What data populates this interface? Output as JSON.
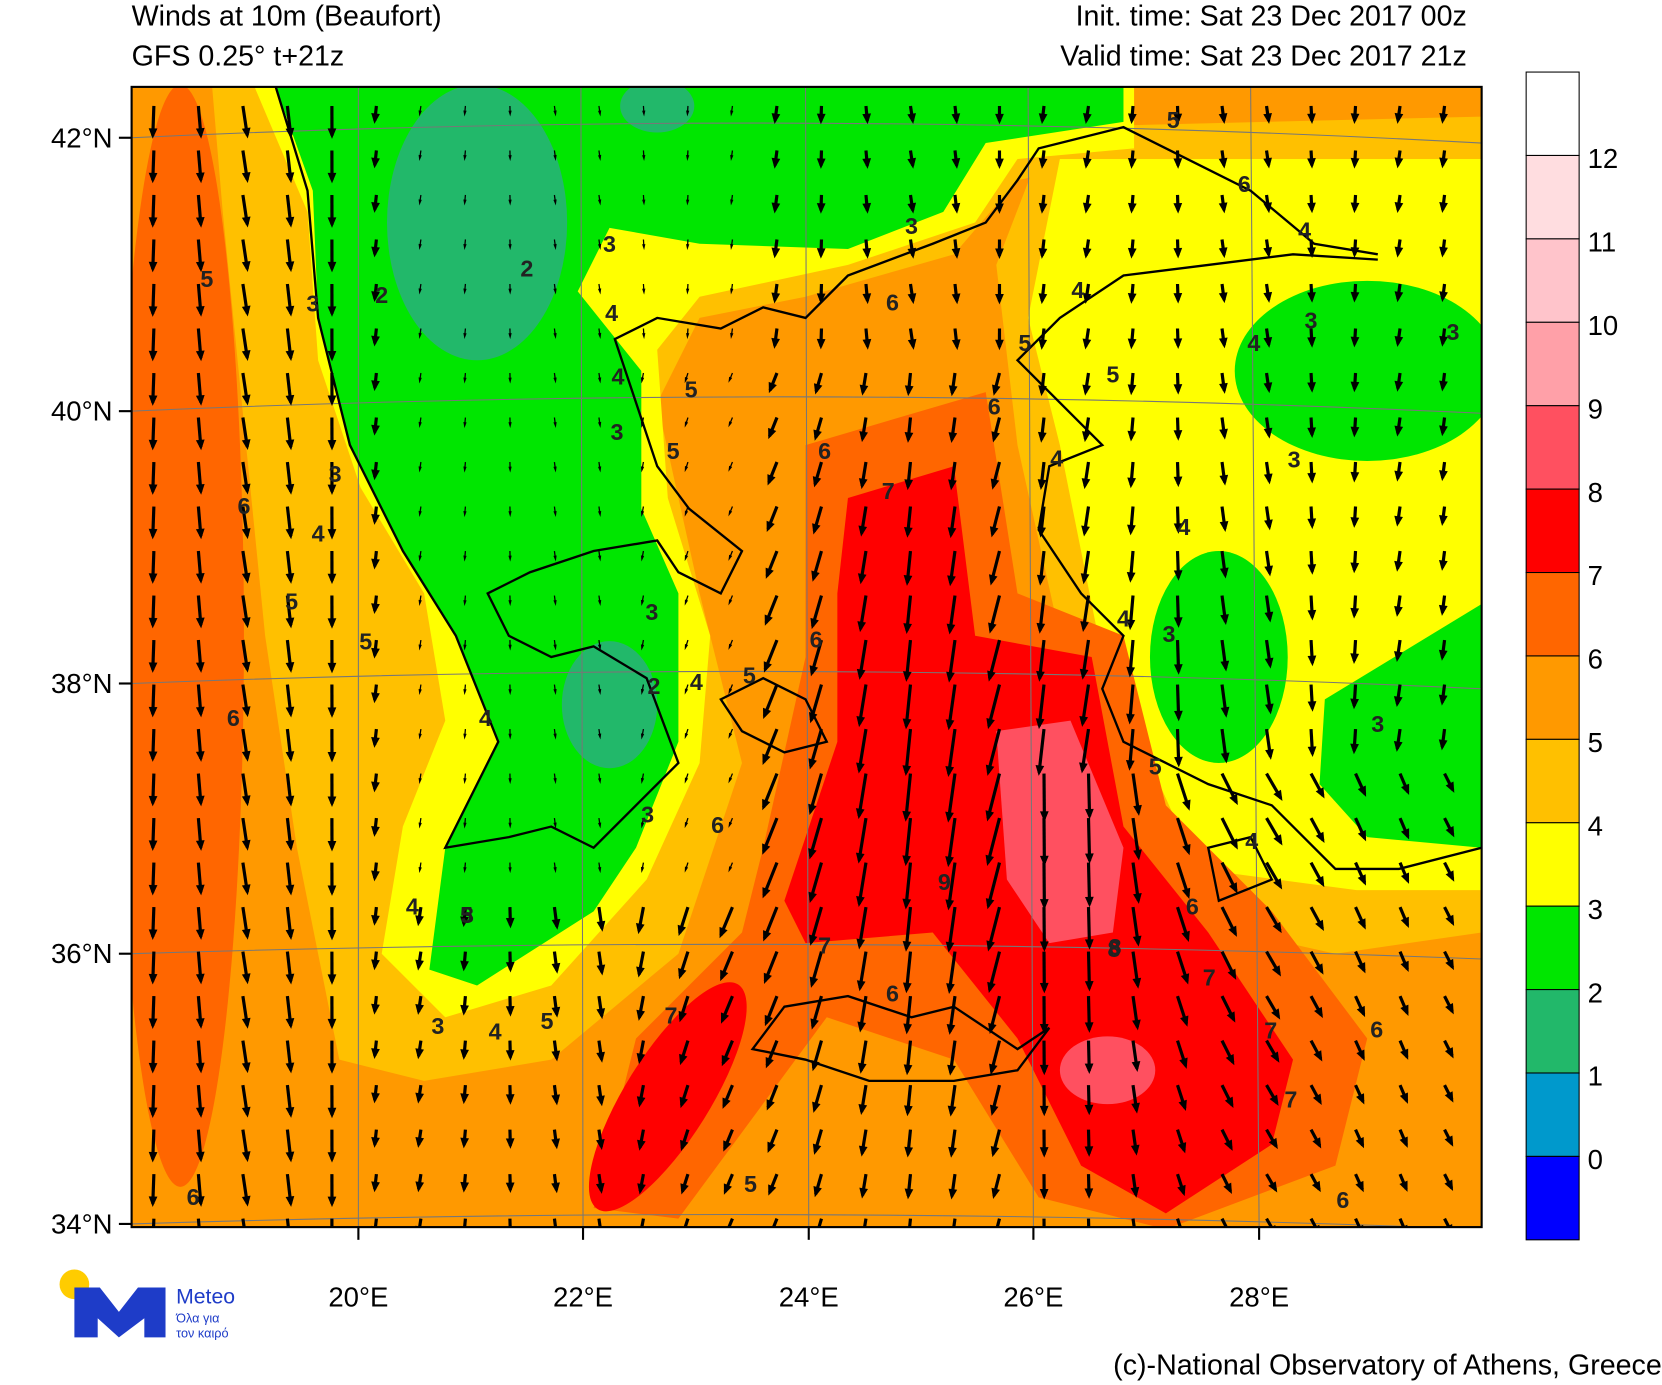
{
  "header": {
    "title": "Winds at 10m (Beaufort)",
    "model": "GFS 0.25° t+21z",
    "init_time": "Init. time: Sat 23 Dec 2017 00z",
    "valid_time": "Valid time: Sat 23 Dec 2017 21z"
  },
  "map": {
    "lat_labels": [
      "42°N",
      "40°N",
      "38°N",
      "36°N",
      "34°N"
    ],
    "lon_labels": [
      "20°E",
      "22°E",
      "24°E",
      "26°E",
      "28°E"
    ],
    "contour_labels": [
      5,
      3,
      2,
      2,
      3,
      4,
      4,
      5,
      3,
      5,
      6,
      6,
      7,
      5,
      4,
      3,
      5,
      6,
      4,
      3,
      3,
      5,
      2,
      4,
      5,
      6,
      3,
      6,
      5,
      4,
      3,
      6,
      5,
      6,
      4,
      5,
      3,
      4,
      7,
      6,
      9,
      8,
      7,
      7,
      6,
      7,
      6,
      5,
      3,
      4,
      4,
      3,
      4,
      6,
      3,
      4,
      7,
      6,
      5,
      6,
      4,
      3,
      3,
      8,
      4,
      5
    ]
  },
  "colorbar": {
    "levels": [
      0,
      1,
      2,
      3,
      4,
      5,
      6,
      7,
      8,
      9,
      10,
      11,
      12
    ],
    "colors": [
      "#0000ff",
      "#0099cc",
      "#22b86a",
      "#00e600",
      "#ffff00",
      "#ffc000",
      "#ff9900",
      "#ff6600",
      "#ff0000",
      "#ff5060",
      "#ffa0a8",
      "#ffc4cb",
      "#ffdde0",
      "#ffffff"
    ]
  },
  "logo": {
    "name": "Meteo",
    "tagline_1": "Όλα για",
    "tagline_2": "τον καιρό"
  },
  "footer": "(c)-National Observatory of Athens, Greece"
}
